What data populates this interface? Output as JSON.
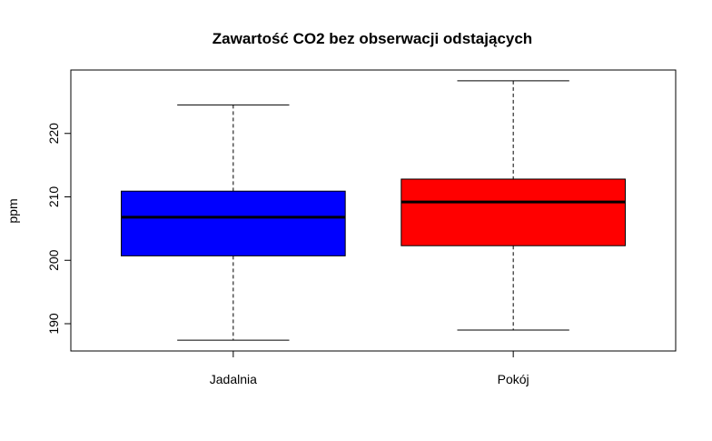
{
  "chart_data": {
    "type": "boxplot",
    "title": "Zawartość CO2 bez obserwacji odstających",
    "xlabel": "",
    "ylabel": "ppm",
    "ylim": [
      185.7,
      230.0
    ],
    "yticks": [
      190,
      200,
      210,
      220
    ],
    "grid": false,
    "categories": [
      "Jadalnia",
      "Pokój"
    ],
    "boxes": [
      {
        "category": "Jadalnia",
        "whisker_low": 187.4,
        "q1": 200.7,
        "median": 206.8,
        "q3": 210.9,
        "whisker_high": 224.5,
        "color": "#0000ff"
      },
      {
        "category": "Pokój",
        "whisker_low": 189.0,
        "q1": 202.3,
        "median": 209.2,
        "q3": 212.8,
        "whisker_high": 228.3,
        "color": "#ff0000"
      }
    ]
  }
}
